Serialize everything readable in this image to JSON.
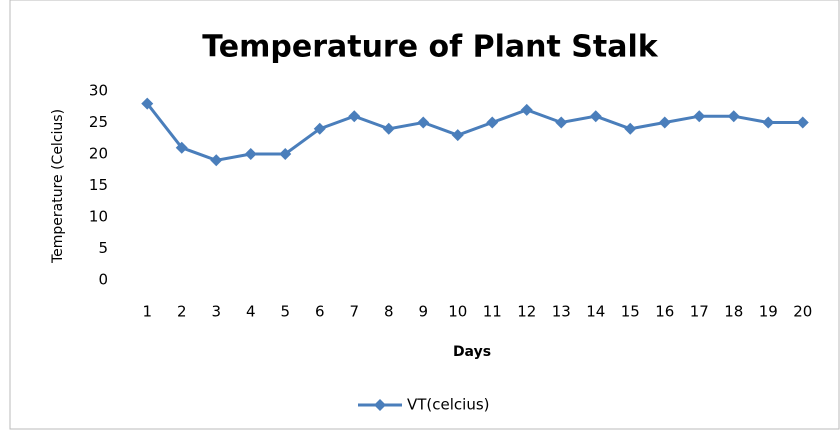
{
  "chart_data": {
    "type": "line",
    "title": "Temperature of Plant Stalk",
    "x_label": "Days",
    "y_label": "Temperature (Celcius)",
    "categories": [
      "1",
      "2",
      "3",
      "4",
      "5",
      "6",
      "7",
      "8",
      "9",
      "10",
      "11",
      "12",
      "13",
      "14",
      "15",
      "16",
      "17",
      "18",
      "19",
      "20"
    ],
    "series": [
      {
        "name": "VT(celcius)",
        "color": "#4a7ebb",
        "values": [
          28,
          21,
          19,
          20,
          20,
          24,
          26,
          24,
          25,
          23,
          25,
          27,
          25,
          26,
          24,
          25,
          26,
          26,
          25,
          25
        ]
      }
    ],
    "ylim": [
      0,
      30
    ],
    "yticks": [
      0,
      5,
      10,
      15,
      20,
      25,
      30
    ],
    "grid": false,
    "legend": "bottom"
  }
}
